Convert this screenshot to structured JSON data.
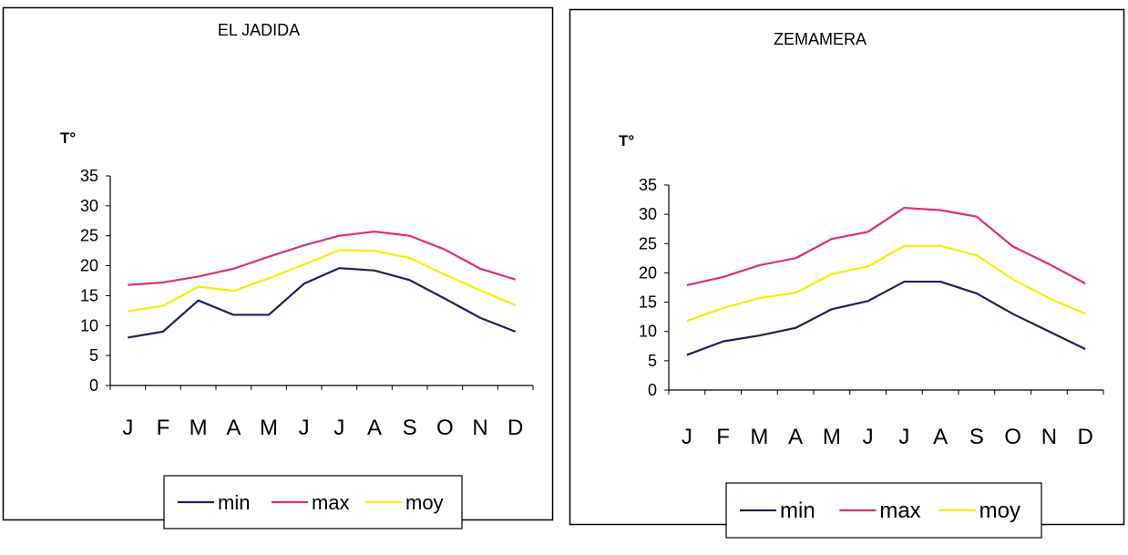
{
  "chart_data": [
    {
      "type": "line",
      "title": "EL JADIDA",
      "ylabel": "T°",
      "xlabel": "",
      "ylim": [
        0,
        35
      ],
      "yticks": [
        "35",
        "30",
        "25",
        "20",
        "15",
        "10",
        "5",
        "0"
      ],
      "categories": [
        "J",
        "F",
        "M",
        "A",
        "M",
        "J",
        "J",
        "A",
        "S",
        "O",
        "N",
        "D"
      ],
      "legend_position": "bottom",
      "series": [
        {
          "name": "min",
          "color": "#1f1f5c",
          "values": [
            8.0,
            9.0,
            14.2,
            11.8,
            11.8,
            17.0,
            19.6,
            19.2,
            17.6,
            14.5,
            11.3,
            9.0
          ]
        },
        {
          "name": "max",
          "color": "#e0306a",
          "values": [
            16.8,
            17.2,
            18.2,
            19.5,
            21.5,
            23.4,
            25.0,
            25.7,
            25.0,
            22.7,
            19.5,
            17.7
          ]
        },
        {
          "name": "moy",
          "color": "#f6ee00",
          "values": [
            12.4,
            13.3,
            16.5,
            15.8,
            17.9,
            20.2,
            22.6,
            22.5,
            21.3,
            18.5,
            15.9,
            13.4
          ]
        }
      ]
    },
    {
      "type": "line",
      "title": "ZEMAMERA",
      "ylabel": "T°",
      "xlabel": "",
      "ylim": [
        0,
        35
      ],
      "yticks": [
        "35",
        "30",
        "25",
        "20",
        "15",
        "10",
        "5",
        "0"
      ],
      "categories": [
        "J",
        "F",
        "M",
        "A",
        "M",
        "J",
        "J",
        "A",
        "S",
        "O",
        "N",
        "D"
      ],
      "legend_position": "bottom",
      "series": [
        {
          "name": "min",
          "color": "#1f1f5c",
          "values": [
            6.0,
            8.3,
            9.3,
            10.6,
            13.8,
            15.2,
            18.5,
            18.5,
            16.5,
            13.0,
            10.0,
            7.0
          ]
        },
        {
          "name": "max",
          "color": "#e0306a",
          "values": [
            17.9,
            19.3,
            21.3,
            22.5,
            25.8,
            27.0,
            31.1,
            30.7,
            29.6,
            24.5,
            21.5,
            18.2
          ]
        },
        {
          "name": "moy",
          "color": "#f6ee00",
          "values": [
            11.8,
            14.0,
            15.7,
            16.6,
            19.8,
            21.1,
            24.6,
            24.6,
            23.0,
            18.9,
            15.7,
            13.0
          ]
        }
      ]
    }
  ]
}
